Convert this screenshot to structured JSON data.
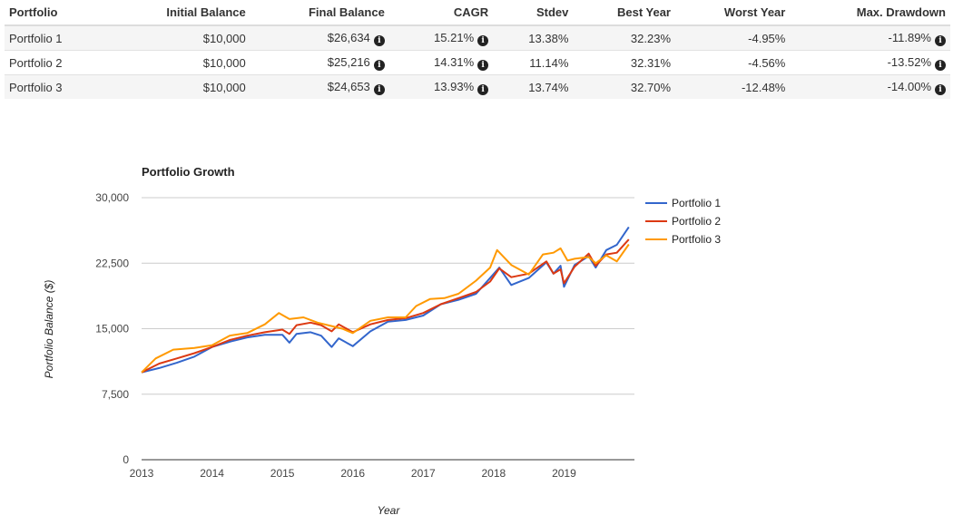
{
  "table": {
    "headers": [
      "Portfolio",
      "Initial Balance",
      "Final Balance",
      "CAGR",
      "Stdev",
      "Best Year",
      "Worst Year",
      "Max. Drawdown"
    ],
    "rows": [
      {
        "portfolio": "Portfolio 1",
        "initial": "$10,000",
        "final": "$26,634",
        "cagr": "15.21%",
        "stdev": "13.38%",
        "best": "32.23%",
        "worst": "-4.95%",
        "drawdown": "-11.89%"
      },
      {
        "portfolio": "Portfolio 2",
        "initial": "$10,000",
        "final": "$25,216",
        "cagr": "14.31%",
        "stdev": "11.14%",
        "best": "32.31%",
        "worst": "-4.56%",
        "drawdown": "-13.52%"
      },
      {
        "portfolio": "Portfolio 3",
        "initial": "$10,000",
        "final": "$24,653",
        "cagr": "13.93%",
        "stdev": "13.74%",
        "best": "32.70%",
        "worst": "-12.48%",
        "drawdown": "-14.00%"
      }
    ],
    "info_icon": "info-circle-icon"
  },
  "chart_data": {
    "type": "line",
    "title": "Portfolio Growth",
    "xlabel": "Year",
    "ylabel": "Portfolio Balance ($)",
    "xlim": [
      2013,
      2020
    ],
    "ylim": [
      0,
      30000
    ],
    "x_ticks": [
      2013,
      2014,
      2015,
      2016,
      2017,
      2018,
      2019
    ],
    "x_tick_labels": [
      "2013",
      "2014",
      "2015",
      "2016",
      "2017",
      "2018",
      "2019"
    ],
    "y_ticks": [
      0,
      7500,
      15000,
      22500,
      30000
    ],
    "y_tick_labels": [
      "0",
      "7,500",
      "15,000",
      "22,500",
      "30,000"
    ],
    "grid": true,
    "legend": "right",
    "series": [
      {
        "name": "Portfolio 1",
        "color": "#3366cc",
        "points": [
          [
            2013.0,
            10000
          ],
          [
            2013.25,
            10500
          ],
          [
            2013.5,
            11100
          ],
          [
            2013.75,
            11800
          ],
          [
            2014.0,
            12900
          ],
          [
            2014.25,
            13500
          ],
          [
            2014.5,
            14000
          ],
          [
            2014.75,
            14300
          ],
          [
            2015.0,
            14300
          ],
          [
            2015.1,
            13400
          ],
          [
            2015.2,
            14400
          ],
          [
            2015.4,
            14600
          ],
          [
            2015.55,
            14200
          ],
          [
            2015.7,
            12900
          ],
          [
            2015.8,
            13900
          ],
          [
            2016.0,
            13000
          ],
          [
            2016.25,
            14700
          ],
          [
            2016.5,
            15800
          ],
          [
            2016.75,
            16000
          ],
          [
            2017.0,
            16500
          ],
          [
            2017.25,
            17800
          ],
          [
            2017.5,
            18300
          ],
          [
            2017.75,
            19000
          ],
          [
            2017.95,
            20800
          ],
          [
            2018.08,
            22000
          ],
          [
            2018.25,
            20000
          ],
          [
            2018.5,
            20800
          ],
          [
            2018.75,
            22600
          ],
          [
            2018.85,
            21300
          ],
          [
            2018.95,
            22200
          ],
          [
            2019.0,
            19800
          ],
          [
            2019.15,
            22300
          ],
          [
            2019.35,
            23300
          ],
          [
            2019.45,
            22000
          ],
          [
            2019.6,
            24000
          ],
          [
            2019.75,
            24600
          ],
          [
            2019.92,
            26634
          ]
        ]
      },
      {
        "name": "Portfolio 2",
        "color": "#dc3912",
        "points": [
          [
            2013.0,
            10000
          ],
          [
            2013.25,
            11000
          ],
          [
            2013.5,
            11600
          ],
          [
            2013.75,
            12200
          ],
          [
            2014.0,
            12900
          ],
          [
            2014.25,
            13700
          ],
          [
            2014.5,
            14200
          ],
          [
            2014.75,
            14600
          ],
          [
            2015.0,
            14900
          ],
          [
            2015.1,
            14400
          ],
          [
            2015.2,
            15400
          ],
          [
            2015.4,
            15700
          ],
          [
            2015.55,
            15400
          ],
          [
            2015.7,
            14700
          ],
          [
            2015.8,
            15500
          ],
          [
            2016.0,
            14600
          ],
          [
            2016.25,
            15500
          ],
          [
            2016.5,
            16000
          ],
          [
            2016.75,
            16200
          ],
          [
            2017.0,
            16800
          ],
          [
            2017.25,
            17800
          ],
          [
            2017.5,
            18500
          ],
          [
            2017.75,
            19200
          ],
          [
            2017.95,
            20400
          ],
          [
            2018.08,
            21900
          ],
          [
            2018.25,
            20900
          ],
          [
            2018.5,
            21300
          ],
          [
            2018.75,
            22700
          ],
          [
            2018.85,
            21300
          ],
          [
            2018.95,
            21800
          ],
          [
            2019.0,
            20200
          ],
          [
            2019.15,
            22100
          ],
          [
            2019.35,
            23600
          ],
          [
            2019.45,
            22200
          ],
          [
            2019.6,
            23500
          ],
          [
            2019.75,
            23700
          ],
          [
            2019.92,
            25216
          ]
        ]
      },
      {
        "name": "Portfolio 3",
        "color": "#ff9900",
        "points": [
          [
            2013.0,
            10000
          ],
          [
            2013.2,
            11600
          ],
          [
            2013.45,
            12600
          ],
          [
            2013.75,
            12800
          ],
          [
            2014.0,
            13100
          ],
          [
            2014.25,
            14200
          ],
          [
            2014.5,
            14500
          ],
          [
            2014.75,
            15500
          ],
          [
            2014.95,
            16800
          ],
          [
            2015.1,
            16100
          ],
          [
            2015.3,
            16300
          ],
          [
            2015.5,
            15700
          ],
          [
            2015.7,
            15300
          ],
          [
            2015.85,
            15000
          ],
          [
            2016.0,
            14500
          ],
          [
            2016.25,
            15900
          ],
          [
            2016.5,
            16300
          ],
          [
            2016.75,
            16300
          ],
          [
            2016.9,
            17600
          ],
          [
            2017.1,
            18400
          ],
          [
            2017.3,
            18500
          ],
          [
            2017.5,
            19000
          ],
          [
            2017.75,
            20500
          ],
          [
            2017.95,
            22000
          ],
          [
            2018.05,
            24000
          ],
          [
            2018.25,
            22300
          ],
          [
            2018.5,
            21200
          ],
          [
            2018.7,
            23500
          ],
          [
            2018.85,
            23700
          ],
          [
            2018.95,
            24200
          ],
          [
            2019.05,
            22800
          ],
          [
            2019.15,
            23000
          ],
          [
            2019.35,
            23200
          ],
          [
            2019.45,
            22500
          ],
          [
            2019.6,
            23400
          ],
          [
            2019.75,
            22700
          ],
          [
            2019.92,
            24653
          ]
        ]
      }
    ]
  }
}
